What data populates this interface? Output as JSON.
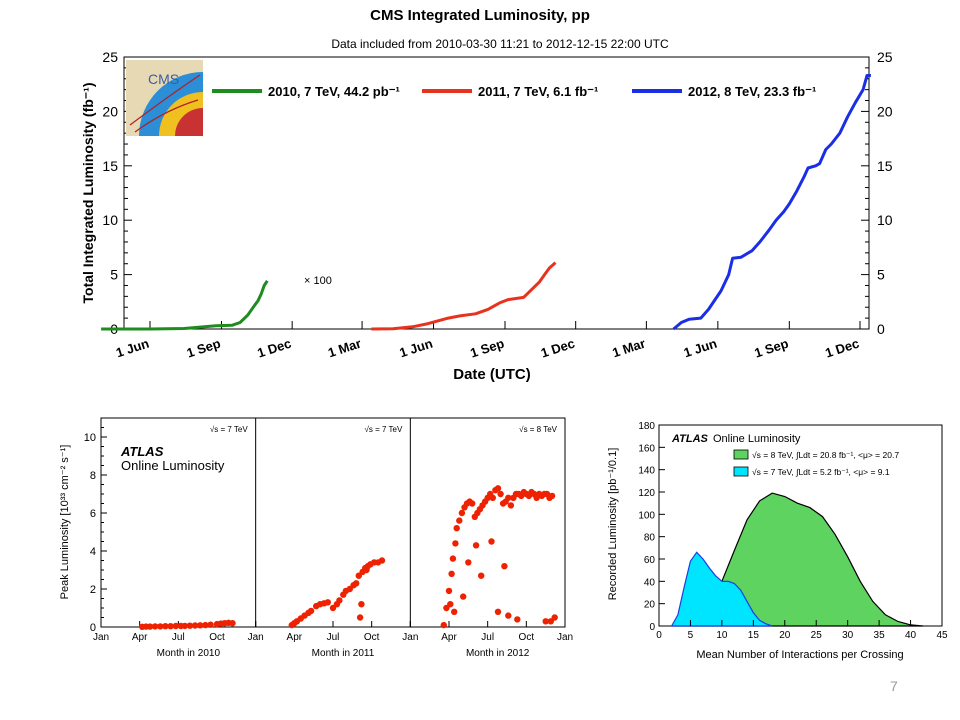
{
  "slide": {
    "page_number": "7"
  },
  "chart_data": [
    {
      "id": "cms",
      "type": "line",
      "title": "CMS Integrated Luminosity, pp",
      "subtitle": "Data included from 2010-03-30 11:21 to 2012-12-15 22:00 UTC",
      "xlabel": "Date (UTC)",
      "ylabel": "Total Integrated Luminosity (fb⁻¹)",
      "ylim": [
        0,
        25
      ],
      "yticks": [
        0,
        5,
        10,
        15,
        20,
        25
      ],
      "xticks": [
        {
          "x": "2010-06-01",
          "label": "1 Jun"
        },
        {
          "x": "2010-09-01",
          "label": "1 Sep"
        },
        {
          "x": "2010-12-01",
          "label": "1 Dec"
        },
        {
          "x": "2011-03-01",
          "label": "1 Mar"
        },
        {
          "x": "2011-06-01",
          "label": "1 Jun"
        },
        {
          "x": "2011-09-01",
          "label": "1 Sep"
        },
        {
          "x": "2011-12-01",
          "label": "1 Dec"
        },
        {
          "x": "2012-03-01",
          "label": "1 Mar"
        },
        {
          "x": "2012-06-01",
          "label": "1 Jun"
        },
        {
          "x": "2012-09-01",
          "label": "1 Sep"
        },
        {
          "x": "2012-12-01",
          "label": "1 Dec"
        }
      ],
      "annotation": "× 100",
      "logo": "CMS",
      "legend_position": "top",
      "series": [
        {
          "name": "2010, 7 TeV, 44.2 pb⁻¹",
          "color": "#1e8c1e",
          "points": [
            [
              "2010-03-30",
              0
            ],
            [
              "2010-06-01",
              0
            ],
            [
              "2010-07-15",
              0.05
            ],
            [
              "2010-08-10",
              0.2
            ],
            [
              "2010-08-25",
              0.3
            ],
            [
              "2010-09-15",
              0.35
            ],
            [
              "2010-09-25",
              0.6
            ],
            [
              "2010-10-05",
              1.3
            ],
            [
              "2010-10-12",
              2.0
            ],
            [
              "2010-10-18",
              2.6
            ],
            [
              "2010-10-22",
              3.2
            ],
            [
              "2010-10-26",
              4.0
            ],
            [
              "2010-10-30",
              4.42
            ]
          ]
        },
        {
          "name": "2011, 7 TeV, 6.1 fb⁻¹",
          "color": "#e8321e",
          "points": [
            [
              "2011-03-13",
              0
            ],
            [
              "2011-04-10",
              0.03
            ],
            [
              "2011-05-05",
              0.2
            ],
            [
              "2011-05-25",
              0.5
            ],
            [
              "2011-06-20",
              1.0
            ],
            [
              "2011-07-05",
              1.2
            ],
            [
              "2011-07-25",
              1.4
            ],
            [
              "2011-08-10",
              1.8
            ],
            [
              "2011-08-25",
              2.4
            ],
            [
              "2011-09-05",
              2.7
            ],
            [
              "2011-09-25",
              2.9
            ],
            [
              "2011-10-05",
              3.6
            ],
            [
              "2011-10-15",
              4.3
            ],
            [
              "2011-10-22",
              5.0
            ],
            [
              "2011-10-28",
              5.6
            ],
            [
              "2011-11-05",
              6.1
            ]
          ]
        },
        {
          "name": "2012, 8 TeV, 23.3 fb⁻¹",
          "color": "#1a2ee6",
          "points": [
            [
              "2012-04-05",
              0
            ],
            [
              "2012-04-15",
              0.6
            ],
            [
              "2012-04-25",
              0.9
            ],
            [
              "2012-05-10",
              1.0
            ],
            [
              "2012-05-20",
              1.8
            ],
            [
              "2012-06-05",
              3.5
            ],
            [
              "2012-06-15",
              5.0
            ],
            [
              "2012-06-20",
              6.5
            ],
            [
              "2012-07-01",
              6.6
            ],
            [
              "2012-07-15",
              7.2
            ],
            [
              "2012-07-25",
              8.0
            ],
            [
              "2012-08-05",
              9.0
            ],
            [
              "2012-08-15",
              10.0
            ],
            [
              "2012-08-25",
              10.8
            ],
            [
              "2012-09-01",
              11.5
            ],
            [
              "2012-09-10",
              12.6
            ],
            [
              "2012-09-20",
              14.0
            ],
            [
              "2012-09-25",
              14.8
            ],
            [
              "2012-10-05",
              15.0
            ],
            [
              "2012-10-10",
              15.2
            ],
            [
              "2012-10-18",
              16.5
            ],
            [
              "2012-10-25",
              17.0
            ],
            [
              "2012-11-05",
              18.0
            ],
            [
              "2012-11-15",
              19.5
            ],
            [
              "2012-11-25",
              20.8
            ],
            [
              "2012-12-05",
              22.0
            ],
            [
              "2012-12-10",
              23.3
            ],
            [
              "2012-12-15",
              23.3
            ]
          ]
        }
      ]
    },
    {
      "id": "atlas-peak",
      "type": "scatter",
      "ylabel": "Peak Luminosity [10³³ cm⁻² s⁻¹]",
      "ylim": [
        0,
        11
      ],
      "yticks": [
        0,
        2,
        4,
        6,
        8,
        10
      ],
      "experiment": "ATLAS",
      "caption": "Online Luminosity",
      "color": "#ee2200",
      "panels": [
        {
          "xlabel": "Month in 2010",
          "energy": "√s = 7 TeV",
          "month_ticks": [
            "Jan",
            "Apr",
            "Jul",
            "Oct",
            "Jan"
          ],
          "points": [
            [
              3.2,
              0.01
            ],
            [
              3.5,
              0.02
            ],
            [
              3.8,
              0.02
            ],
            [
              4.2,
              0.03
            ],
            [
              4.6,
              0.03
            ],
            [
              5.0,
              0.04
            ],
            [
              5.4,
              0.04
            ],
            [
              5.8,
              0.05
            ],
            [
              6.2,
              0.05
            ],
            [
              6.5,
              0.06
            ],
            [
              6.9,
              0.07
            ],
            [
              7.3,
              0.08
            ],
            [
              7.7,
              0.09
            ],
            [
              8.1,
              0.1
            ],
            [
              8.5,
              0.12
            ],
            [
              9.0,
              0.15
            ],
            [
              9.3,
              0.18
            ],
            [
              9.6,
              0.2
            ],
            [
              9.9,
              0.22
            ],
            [
              10.2,
              0.2
            ]
          ]
        },
        {
          "xlabel": "Month in 2011",
          "energy": "√s = 7 TeV",
          "month_ticks": [
            "Jan",
            "Apr",
            "Jul",
            "Oct",
            "Jan"
          ],
          "points": [
            [
              2.8,
              0.1
            ],
            [
              3.0,
              0.2
            ],
            [
              3.2,
              0.3
            ],
            [
              3.5,
              0.45
            ],
            [
              3.8,
              0.6
            ],
            [
              4.1,
              0.75
            ],
            [
              4.3,
              0.85
            ],
            [
              4.7,
              1.1
            ],
            [
              5.0,
              1.2
            ],
            [
              5.3,
              1.25
            ],
            [
              5.6,
              1.3
            ],
            [
              6.0,
              1.0
            ],
            [
              6.3,
              1.2
            ],
            [
              6.5,
              1.4
            ],
            [
              6.8,
              1.7
            ],
            [
              7.0,
              1.9
            ],
            [
              7.3,
              2.0
            ],
            [
              7.6,
              2.2
            ],
            [
              7.8,
              2.3
            ],
            [
              8.0,
              2.7
            ],
            [
              8.2,
              1.2
            ],
            [
              8.3,
              2.9
            ],
            [
              8.5,
              3.1
            ],
            [
              8.7,
              3.2
            ],
            [
              8.9,
              3.3
            ],
            [
              9.2,
              3.4
            ],
            [
              9.5,
              3.4
            ],
            [
              9.8,
              3.5
            ],
            [
              8.1,
              0.5
            ],
            [
              8.6,
              3.0
            ]
          ]
        },
        {
          "xlabel": "Month in 2012",
          "energy": "√s = 8 TeV",
          "month_ticks": [
            "Jan",
            "Apr",
            "Jul",
            "Oct",
            "Jan"
          ],
          "points": [
            [
              2.6,
              0.1
            ],
            [
              2.8,
              1.0
            ],
            [
              3.0,
              1.9
            ],
            [
              3.2,
              2.8
            ],
            [
              3.3,
              3.6
            ],
            [
              3.5,
              4.4
            ],
            [
              3.6,
              5.2
            ],
            [
              3.8,
              5.6
            ],
            [
              4.0,
              6.0
            ],
            [
              4.2,
              6.3
            ],
            [
              4.4,
              6.5
            ],
            [
              4.6,
              6.6
            ],
            [
              4.8,
              6.5
            ],
            [
              5.0,
              5.8
            ],
            [
              5.2,
              6.0
            ],
            [
              5.4,
              6.2
            ],
            [
              5.6,
              6.4
            ],
            [
              5.8,
              6.6
            ],
            [
              6.0,
              6.8
            ],
            [
              6.2,
              7.0
            ],
            [
              6.4,
              6.8
            ],
            [
              6.6,
              7.2
            ],
            [
              6.8,
              7.3
            ],
            [
              7.0,
              7.0
            ],
            [
              7.2,
              6.5
            ],
            [
              7.4,
              6.6
            ],
            [
              7.6,
              6.8
            ],
            [
              7.8,
              6.4
            ],
            [
              8.0,
              6.8
            ],
            [
              8.2,
              7.0
            ],
            [
              8.4,
              7.0
            ],
            [
              8.6,
              6.9
            ],
            [
              8.8,
              7.1
            ],
            [
              9.0,
              7.0
            ],
            [
              9.2,
              6.9
            ],
            [
              9.4,
              7.1
            ],
            [
              9.6,
              7.0
            ],
            [
              9.8,
              6.8
            ],
            [
              10.0,
              7.0
            ],
            [
              10.2,
              6.9
            ],
            [
              10.4,
              7.0
            ],
            [
              10.6,
              7.0
            ],
            [
              10.8,
              6.8
            ],
            [
              11.0,
              6.9
            ],
            [
              3.1,
              1.2
            ],
            [
              3.4,
              0.8
            ],
            [
              4.1,
              1.6
            ],
            [
              4.5,
              3.4
            ],
            [
              5.1,
              4.3
            ],
            [
              5.5,
              2.7
            ],
            [
              6.3,
              4.5
            ],
            [
              6.8,
              0.8
            ],
            [
              7.3,
              3.2
            ],
            [
              7.6,
              0.6
            ],
            [
              8.3,
              0.4
            ],
            [
              10.5,
              0.3
            ],
            [
              10.9,
              0.3
            ],
            [
              11.2,
              0.5
            ]
          ]
        }
      ]
    },
    {
      "id": "atlas-pileup",
      "type": "area",
      "experiment": "ATLAS",
      "caption": "Online Luminosity",
      "xlabel": "Mean Number of Interactions per Crossing",
      "ylabel": "Recorded Luminosity [pb⁻¹/0.1]",
      "xlim": [
        0,
        45
      ],
      "ylim": [
        0,
        180
      ],
      "xticks": [
        0,
        5,
        10,
        15,
        20,
        25,
        30,
        35,
        40,
        45
      ],
      "yticks": [
        0,
        20,
        40,
        60,
        80,
        100,
        120,
        140,
        160,
        180
      ],
      "series": [
        {
          "legend": "√s = 8 TeV, ∫Ldt = 20.8 fb⁻¹, <μ> = 20.7",
          "color": "#5fd35f",
          "points": [
            [
              2,
              0
            ],
            [
              4,
              2
            ],
            [
              6,
              8
            ],
            [
              8,
              20
            ],
            [
              10,
              40
            ],
            [
              12,
              68
            ],
            [
              14,
              95
            ],
            [
              16,
              112
            ],
            [
              18,
              119
            ],
            [
              20,
              116
            ],
            [
              22,
              110
            ],
            [
              24,
              106
            ],
            [
              26,
              98
            ],
            [
              28,
              82
            ],
            [
              30,
              62
            ],
            [
              32,
              40
            ],
            [
              34,
              22
            ],
            [
              36,
              10
            ],
            [
              38,
              4
            ],
            [
              40,
              1
            ],
            [
              42,
              0
            ]
          ]
        },
        {
          "legend": "√s = 7 TeV, ∫Ldt = 5.2 fb⁻¹, <μ> = 9.1",
          "color": "#00e5ff",
          "points": [
            [
              2,
              0
            ],
            [
              3,
              10
            ],
            [
              4,
              35
            ],
            [
              5,
              58
            ],
            [
              6,
              66
            ],
            [
              7,
              60
            ],
            [
              8,
              52
            ],
            [
              9,
              45
            ],
            [
              10,
              40
            ],
            [
              11,
              40
            ],
            [
              12,
              38
            ],
            [
              13,
              32
            ],
            [
              14,
              22
            ],
            [
              15,
              12
            ],
            [
              16,
              5
            ],
            [
              17,
              2
            ],
            [
              18,
              0
            ]
          ]
        }
      ]
    }
  ]
}
